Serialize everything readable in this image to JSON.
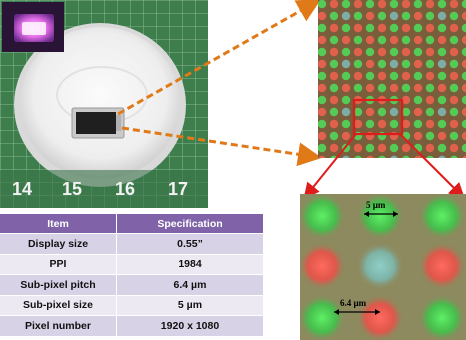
{
  "photo": {
    "ruler_numbers": [
      "14",
      "15",
      "16",
      "17"
    ]
  },
  "zoom": {
    "label_top": "5 µm",
    "label_bottom": "6.4 µm"
  },
  "table": {
    "headers": [
      "Item",
      "Specification"
    ],
    "rows": [
      {
        "item": "Display size",
        "spec": "0.55”"
      },
      {
        "item": "PPI",
        "spec": "1984"
      },
      {
        "item": "Sub-pixel pitch",
        "spec": "6.4 µm"
      },
      {
        "item": "Sub-pixel size",
        "spec": "5 µm"
      },
      {
        "item": "Pixel number",
        "spec": "1920 x 1080"
      }
    ]
  },
  "colors": {
    "table_header": "#7f62a8",
    "row_odd": "#d8d2e6",
    "row_even": "#ece9f3",
    "callout_arrow": "#e07a18",
    "highlight_box": "#e01b1b"
  }
}
